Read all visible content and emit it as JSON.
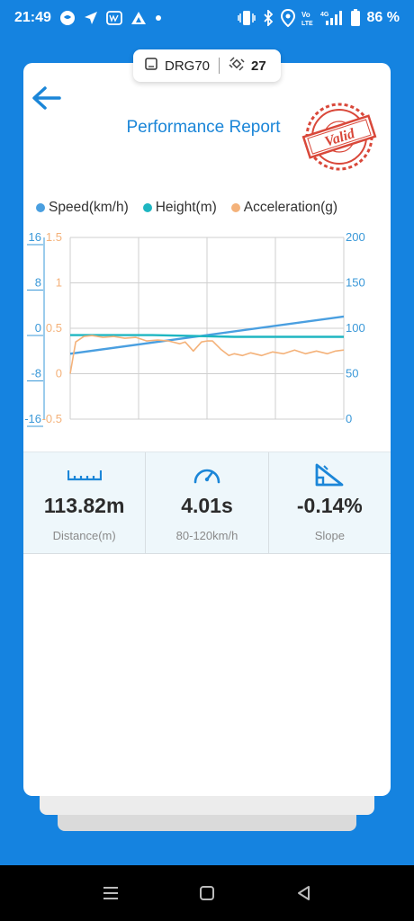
{
  "status_bar": {
    "time": "21:49",
    "battery_percent": "86 %",
    "icons_left": [
      "chat-bubble-icon",
      "location-arrow-icon",
      "wn-badge-icon",
      "triangle-app-icon",
      "dot-icon"
    ],
    "icons_right": [
      "vibrate-icon",
      "bluetooth-icon",
      "location-pin-icon",
      "volte-icon",
      "signal-4g-icon",
      "battery-icon"
    ]
  },
  "device": {
    "name": "DRG70",
    "satellites": "27"
  },
  "report": {
    "title": "Performance Report",
    "stamp_text": "Valid"
  },
  "legend": [
    {
      "label": "Speed(km/h)",
      "color": "#4A9FE0"
    },
    {
      "label": "Height(m)",
      "color": "#1EB6C1"
    },
    {
      "label": "Acceleration(g)",
      "color": "#F4B27A"
    }
  ],
  "chart_data": {
    "type": "line",
    "axes": {
      "left_height": {
        "ticks": [
          "16",
          "8",
          "0",
          "-8",
          "-16"
        ],
        "range": [
          -16,
          16
        ],
        "color": "#3A98D8"
      },
      "left_accel": {
        "ticks": [
          "1.5",
          "1",
          "0.5",
          "0",
          "-0.5"
        ],
        "range": [
          -0.5,
          1.5
        ],
        "color": "#F4B27A"
      },
      "right_speed": {
        "ticks": [
          "200",
          "150",
          "100",
          "50",
          "0"
        ],
        "range": [
          0,
          200
        ],
        "color": "#3A98D8"
      }
    },
    "grid": true,
    "series": [
      {
        "name": "Speed(km/h)",
        "axis": "right_speed",
        "color": "#4A9FE0",
        "x": [
          0,
          1
        ],
        "y": [
          72,
          113
        ]
      },
      {
        "name": "Height(m)",
        "axis": "left_height",
        "color": "#1EB6C1",
        "x": [
          0,
          0.3,
          0.6,
          1
        ],
        "y": [
          -1.2,
          -1.2,
          -1.5,
          -1.5
        ]
      },
      {
        "name": "Acceleration(g)",
        "axis": "left_accel",
        "color": "#F4B27A",
        "x": [
          0,
          0.02,
          0.05,
          0.08,
          0.12,
          0.16,
          0.2,
          0.24,
          0.28,
          0.32,
          0.36,
          0.4,
          0.42,
          0.45,
          0.48,
          0.5,
          0.52,
          0.55,
          0.58,
          0.6,
          0.63,
          0.66,
          0.7,
          0.74,
          0.78,
          0.82,
          0.86,
          0.9,
          0.94,
          0.97,
          1
        ],
        "y": [
          0.0,
          0.35,
          0.41,
          0.42,
          0.4,
          0.41,
          0.39,
          0.4,
          0.36,
          0.37,
          0.36,
          0.33,
          0.35,
          0.25,
          0.35,
          0.36,
          0.36,
          0.27,
          0.2,
          0.22,
          0.2,
          0.23,
          0.2,
          0.24,
          0.22,
          0.26,
          0.22,
          0.25,
          0.22,
          0.25,
          0.26
        ]
      }
    ]
  },
  "stats": [
    {
      "icon": "ruler-icon",
      "value": "113.82m",
      "label": "Distance(m)"
    },
    {
      "icon": "speedometer-icon",
      "value": "4.01s",
      "label": "80-120km/h"
    },
    {
      "icon": "slope-icon",
      "value": "-0.14%",
      "label": "Slope"
    }
  ],
  "nav": [
    "menu-icon",
    "home-icon",
    "back-icon"
  ]
}
